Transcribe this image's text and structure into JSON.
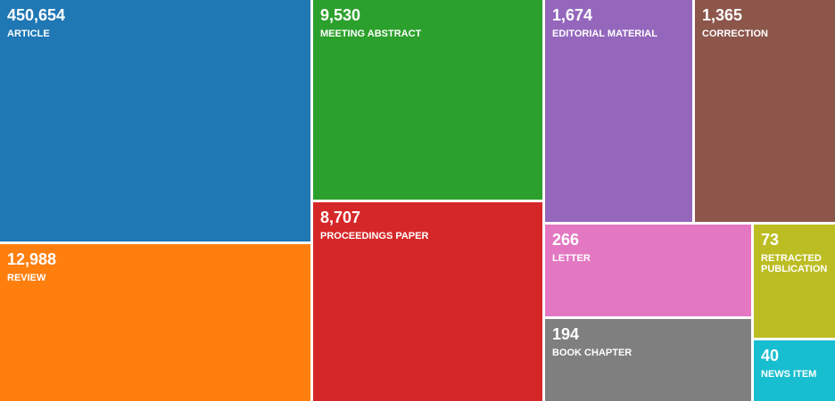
{
  "chart_data": {
    "type": "treemap",
    "items": [
      {
        "label": "ARTICLE",
        "value": 450654,
        "display": "450,654",
        "color": "#1f77b4"
      },
      {
        "label": "REVIEW",
        "value": 12988,
        "display": "12,988",
        "color": "#ff7f0e"
      },
      {
        "label": "MEETING ABSTRACT",
        "value": 9530,
        "display": "9,530",
        "color": "#2ca02c"
      },
      {
        "label": "PROCEEDINGS PAPER",
        "value": 8707,
        "display": "8,707",
        "color": "#d62728"
      },
      {
        "label": "EDITORIAL MATERIAL",
        "value": 1674,
        "display": "1,674",
        "color": "#9467bd"
      },
      {
        "label": "CORRECTION",
        "value": 1365,
        "display": "1,365",
        "color": "#8c564b"
      },
      {
        "label": "LETTER",
        "value": 266,
        "display": "266",
        "color": "#e377c2"
      },
      {
        "label": "BOOK CHAPTER",
        "value": 194,
        "display": "194",
        "color": "#7f7f7f"
      },
      {
        "label": "RETRACTED PUBLICATION",
        "value": 73,
        "display": "73",
        "color": "#bcbd22"
      },
      {
        "label": "NEWS ITEM",
        "value": 40,
        "display": "40",
        "color": "#17becf"
      }
    ]
  }
}
